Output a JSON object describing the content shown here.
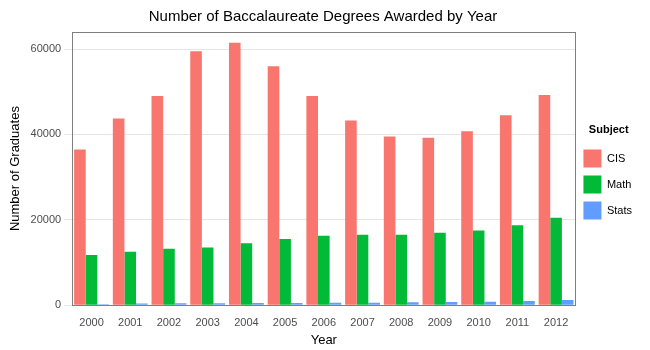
{
  "chart_data": {
    "type": "bar",
    "title": "Number of Baccalaureate Degrees Awarded by Year",
    "x_label": "Year",
    "y_label": "Number of Graduates",
    "legend_title": "Subject",
    "legend": "right",
    "grid": true,
    "categories": [
      "2000",
      "2001",
      "2002",
      "2003",
      "2004",
      "2005",
      "2006",
      "2007",
      "2008",
      "2009",
      "2010",
      "2011",
      "2012"
    ],
    "series": [
      {
        "name": "CIS",
        "color": "#F8766D",
        "values": [
          36500,
          43750,
          49000,
          59500,
          61500,
          56000,
          49000,
          43250,
          39500,
          39250,
          40750,
          44500,
          49250
        ]
      },
      {
        "name": "Math",
        "color": "#00BA38",
        "values": [
          11750,
          12500,
          13250,
          13500,
          14500,
          15500,
          16250,
          16500,
          16500,
          17000,
          17500,
          18750,
          20500
        ]
      },
      {
        "name": "Stats",
        "color": "#619CFF",
        "values": [
          200,
          400,
          450,
          450,
          500,
          500,
          550,
          600,
          700,
          750,
          800,
          1000,
          1200
        ]
      }
    ],
    "ylim": [
      0,
      64000
    ],
    "yticks": [
      0,
      20000,
      40000,
      60000
    ]
  }
}
